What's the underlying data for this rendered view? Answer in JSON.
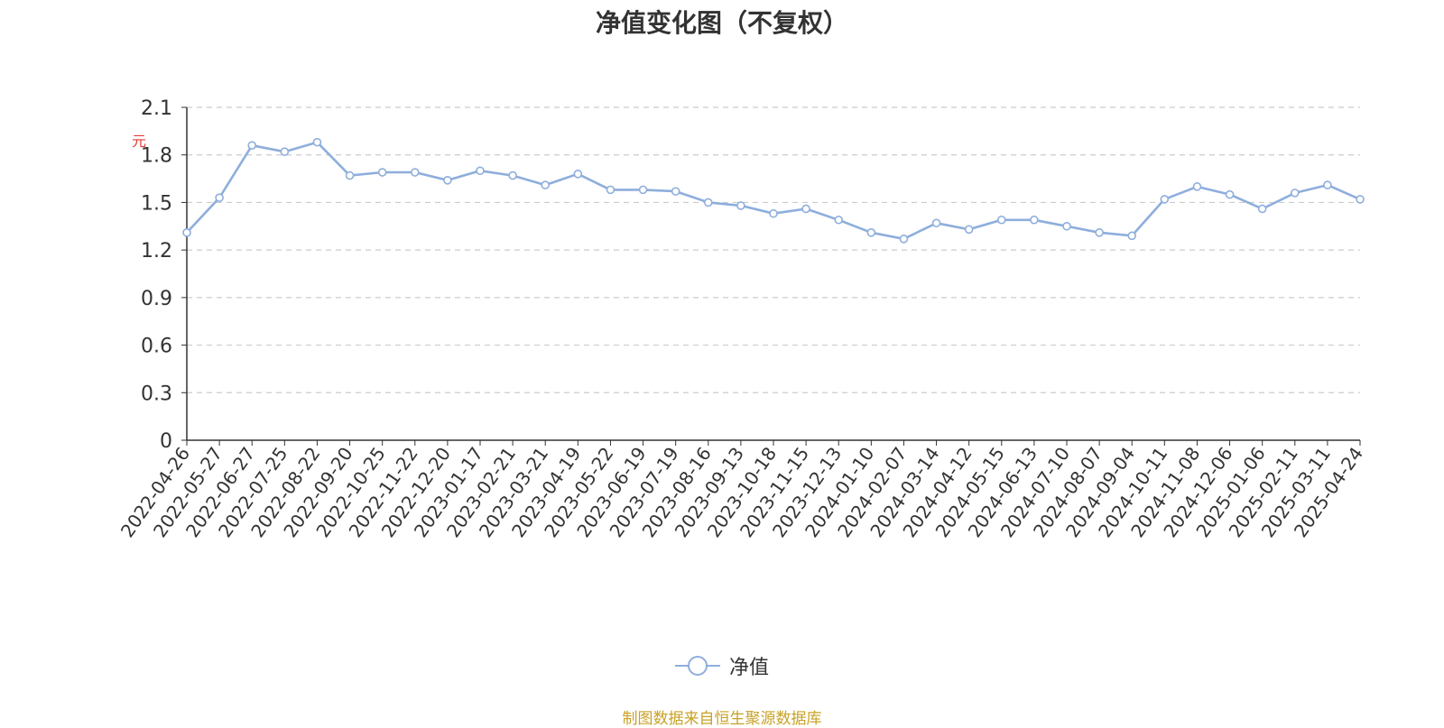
{
  "chart_data": {
    "type": "line",
    "title": "净值变化图（不复权）",
    "ylabel": "元",
    "ylim": [
      0,
      2.1
    ],
    "yticks": [
      "0",
      "0.3",
      "0.6",
      "0.9",
      "1.2",
      "1.5",
      "1.8",
      "2.1"
    ],
    "grid": true,
    "legend_position": "bottom-center",
    "x_tick_labels": [
      "2022-04-26",
      "2022-05-27",
      "2022-06-27",
      "2022-07-25",
      "2022-08-22",
      "2022-09-20",
      "2022-10-25",
      "2022-11-22",
      "2022-12-20",
      "2023-01-17",
      "2023-02-21",
      "2023-03-21",
      "2023-04-19",
      "2023-05-22",
      "2023-06-19",
      "2023-07-19",
      "2023-08-16",
      "2023-09-13",
      "2023-10-18",
      "2023-11-15",
      "2023-12-13",
      "2024-01-10",
      "2024-02-07",
      "2024-03-14",
      "2024-04-12",
      "2024-05-15",
      "2024-06-13",
      "2024-07-10",
      "2024-08-07",
      "2024-09-04",
      "2024-10-11",
      "2024-11-08",
      "2024-12-06",
      "2025-01-06",
      "2025-02-11",
      "2025-03-11",
      "2025-04-24"
    ],
    "series": [
      {
        "name": "净值",
        "color": "#8eaedc",
        "x": [
          "2022-04-26",
          "2022-05-27",
          "2022-06-27",
          "2022-07-25",
          "2022-08-22",
          "2022-09-20",
          "2022-10-25",
          "2022-11-22",
          "2022-12-20",
          "2023-01-17",
          "2023-02-21",
          "2023-03-21",
          "2023-04-19",
          "2023-05-22",
          "2023-06-19",
          "2023-07-19",
          "2023-08-16",
          "2023-09-13",
          "2023-10-18",
          "2023-11-15",
          "2023-12-13",
          "2024-01-10",
          "2024-02-07",
          "2024-03-14",
          "2024-04-12",
          "2024-05-15",
          "2024-06-13",
          "2024-07-10",
          "2024-08-07",
          "2024-09-04",
          "2024-10-11",
          "2024-11-08",
          "2024-12-06",
          "2025-01-06",
          "2025-02-11",
          "2025-03-11",
          "2025-04-24"
        ],
        "values": [
          1.31,
          1.53,
          1.86,
          1.82,
          1.88,
          1.67,
          1.69,
          1.69,
          1.64,
          1.7,
          1.67,
          1.61,
          1.68,
          1.58,
          1.58,
          1.57,
          1.5,
          1.48,
          1.43,
          1.46,
          1.39,
          1.31,
          1.27,
          1.37,
          1.33,
          1.39,
          1.39,
          1.35,
          1.31,
          1.29,
          1.52,
          1.6,
          1.55,
          1.46,
          1.56,
          1.61,
          1.52
        ]
      }
    ]
  },
  "source_text": "制图数据来自恒生聚源数据库"
}
